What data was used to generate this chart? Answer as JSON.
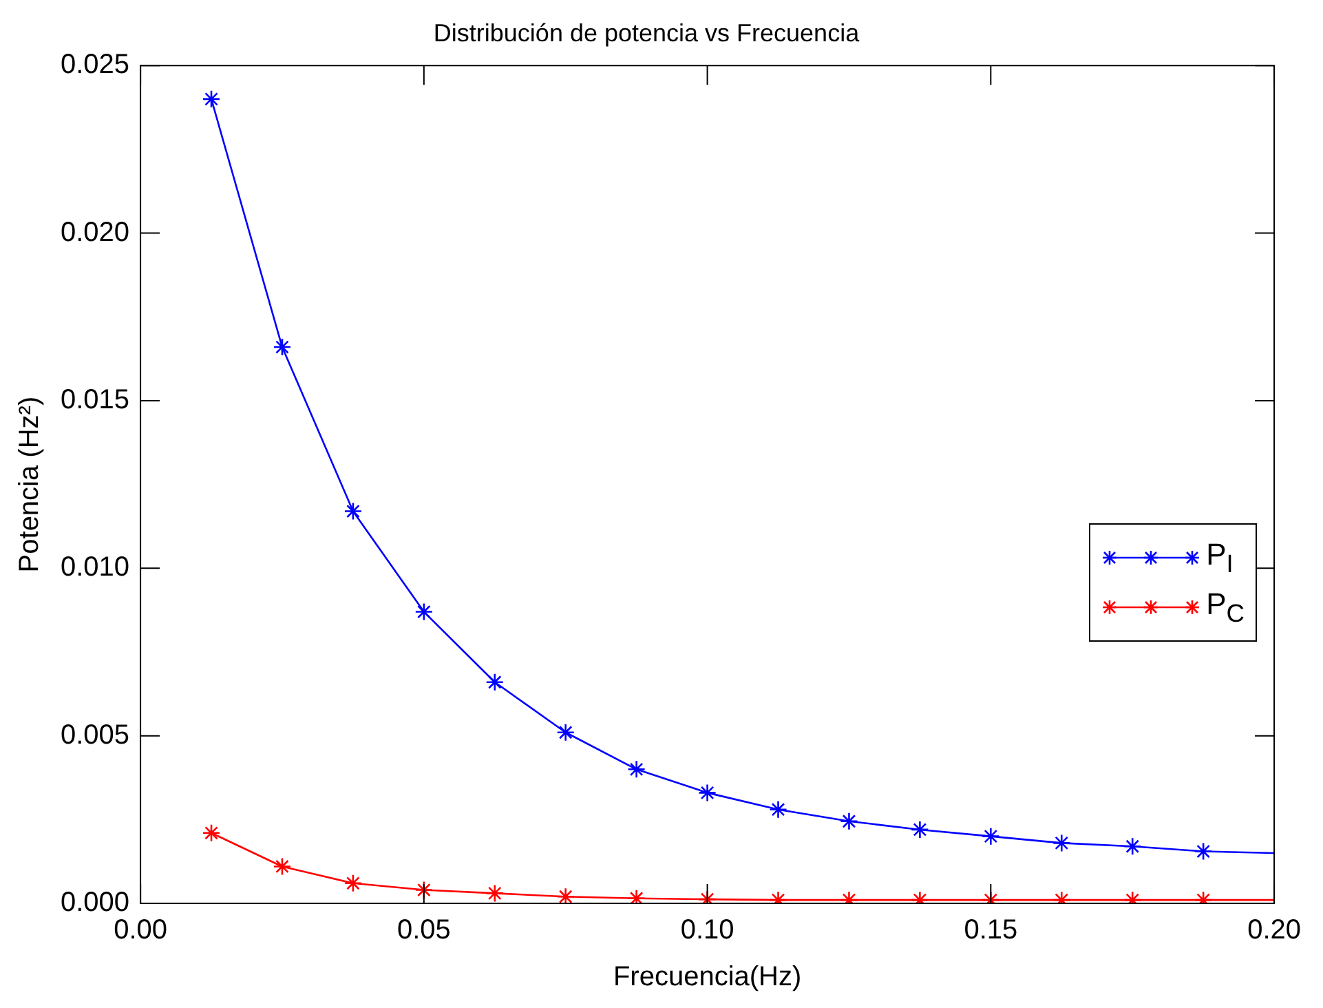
{
  "chart_data": {
    "type": "line",
    "title": "Distribución de potencia vs Frecuencia",
    "xlabel": "Frecuencia(Hz)",
    "ylabel": "Potencia (Hz²)",
    "x": [
      0.0125,
      0.025,
      0.0375,
      0.05,
      0.0625,
      0.075,
      0.0875,
      0.1,
      0.1125,
      0.125,
      0.1375,
      0.15,
      0.1625,
      0.175,
      0.1875,
      0.2
    ],
    "series": [
      {
        "name": "P$_{I}$",
        "color": "#0000ff",
        "values": [
          0.024,
          0.0166,
          0.0117,
          0.0087,
          0.0066,
          0.0051,
          0.004,
          0.0033,
          0.0028,
          0.00245,
          0.0022,
          0.002,
          0.0018,
          0.0017,
          0.00155,
          0.0015
        ]
      },
      {
        "name": "P$_{C}$",
        "color": "#ff0000",
        "values": [
          0.0021,
          0.0011,
          0.0006,
          0.0004,
          0.0003,
          0.0002,
          0.00015,
          0.00012,
          0.0001,
          0.0001,
          0.0001,
          0.0001,
          0.0001,
          0.0001,
          0.0001,
          0.0001
        ]
      }
    ],
    "xlim": [
      0,
      0.2
    ],
    "ylim": [
      0,
      0.025
    ],
    "xticks": [
      {
        "value": 0,
        "label": "0.00"
      },
      {
        "value": 0.05,
        "label": "0.05"
      },
      {
        "value": 0.1,
        "label": "0.10"
      },
      {
        "value": 0.15,
        "label": "0.15"
      },
      {
        "value": 0.2,
        "label": "0.20"
      }
    ],
    "yticks": [
      {
        "value": 0,
        "label": "0.000"
      },
      {
        "value": 0.005,
        "label": "0.005"
      },
      {
        "value": 0.01,
        "label": "0.010"
      },
      {
        "value": 0.015,
        "label": "0.015"
      },
      {
        "value": 0.02,
        "label": "0.020"
      },
      {
        "value": 0.025,
        "label": "0.025"
      }
    ],
    "grid": false,
    "legend": "right",
    "marker": "cross",
    "line_style": "solid"
  }
}
